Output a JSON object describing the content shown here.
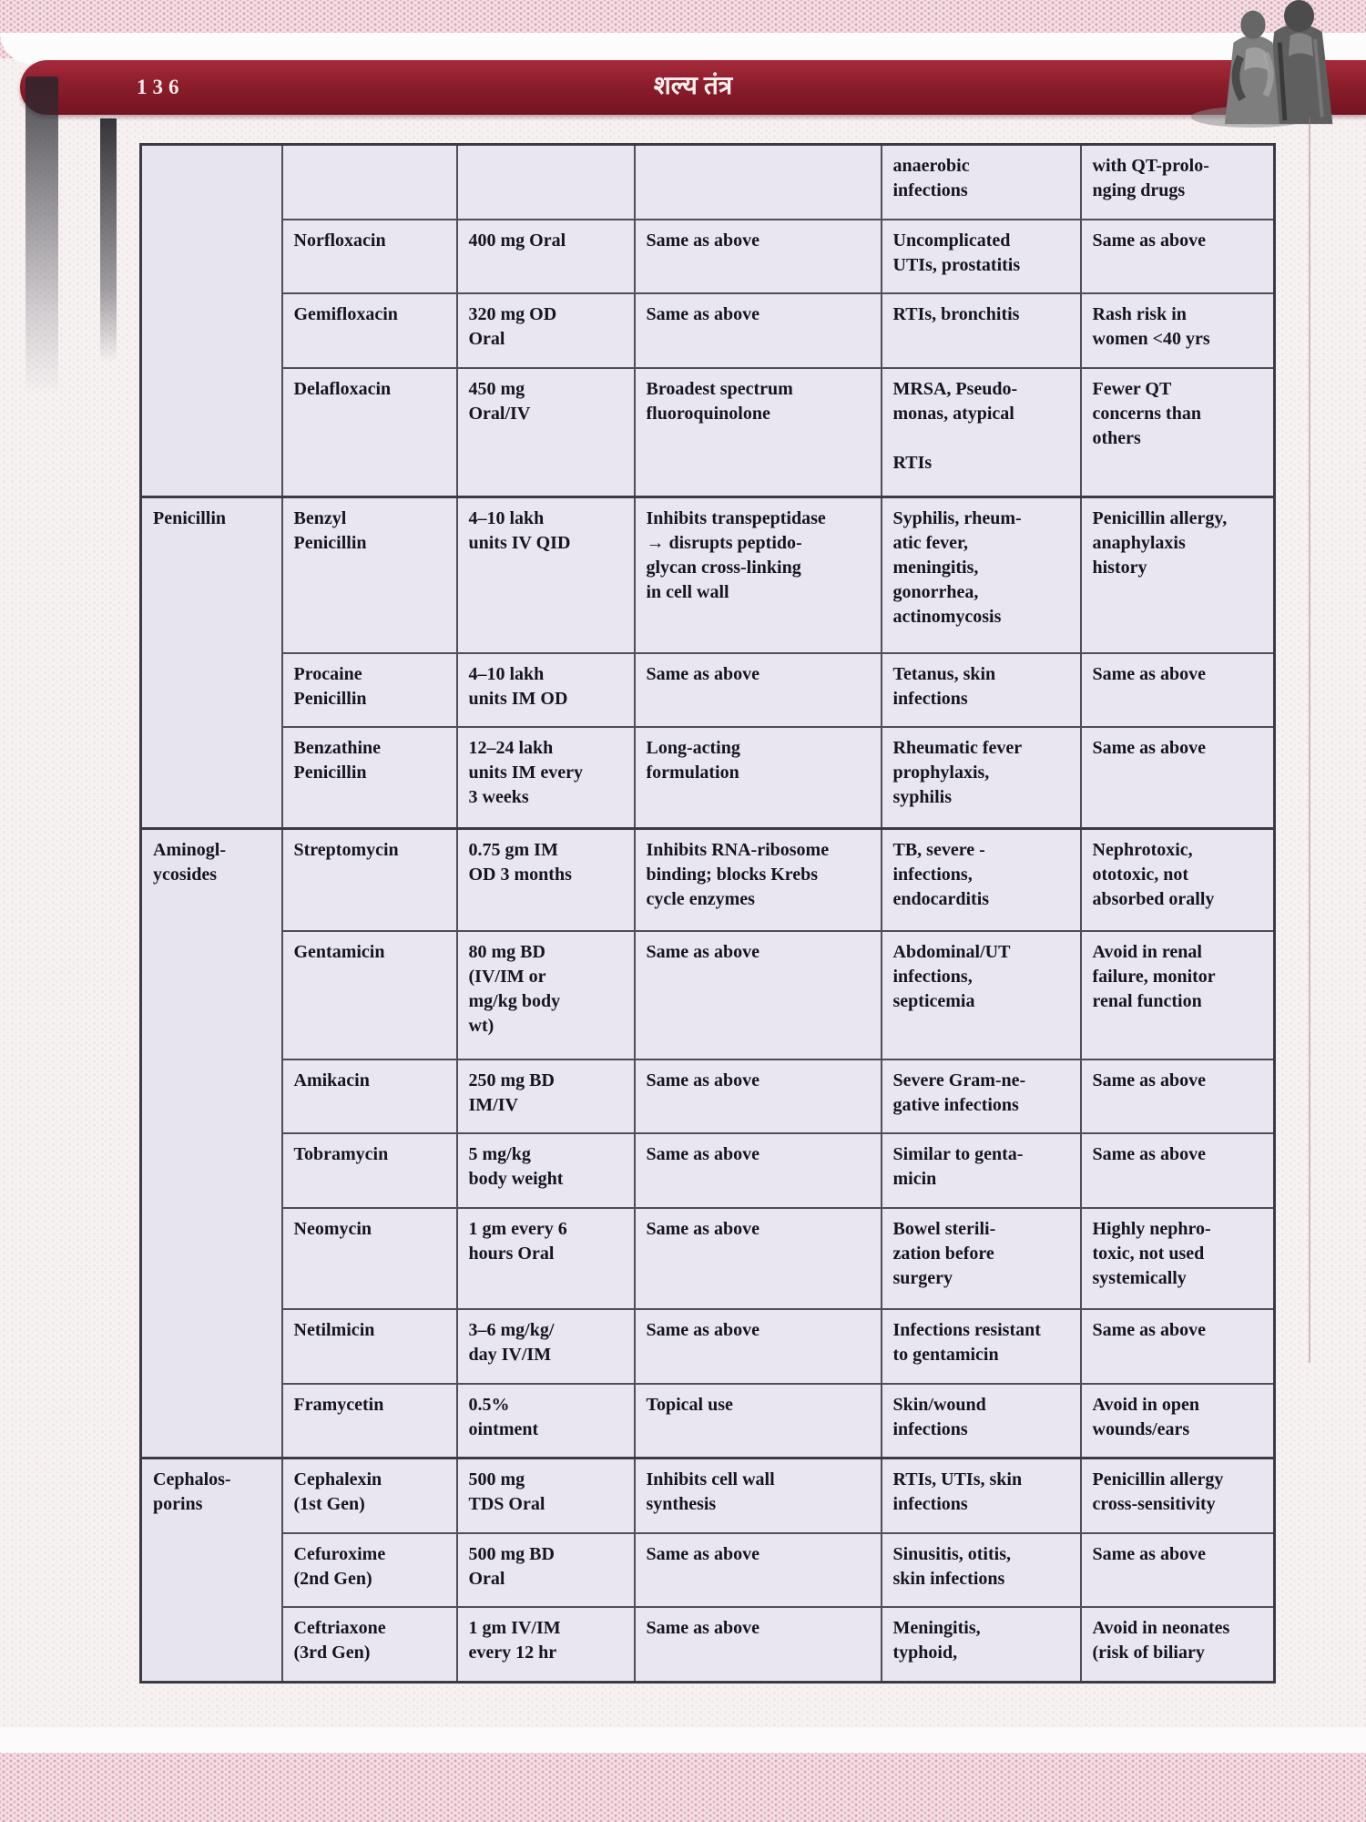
{
  "page": {
    "number": "136",
    "title": "शल्य तंत्र"
  },
  "colors": {
    "band": "#8c1d2b",
    "table_bg": "#e9e6f0",
    "border": "#4e4d58",
    "page_pink": "#f3e2e7"
  },
  "decor": {
    "statue_icon": "physicians-statue"
  },
  "table": {
    "sections": [
      {
        "class_label": "",
        "rows": [
          {
            "drug": "",
            "dose": "",
            "mechanism": "",
            "indications": "anaerobic\ninfections",
            "notes": "with QT-prolo-\nnging drugs"
          },
          {
            "drug": "Norfloxacin",
            "dose": "400 mg Oral",
            "mechanism": "Same as above",
            "indications": "Uncomplicated\nUTIs, prostatitis",
            "notes": "Same as above"
          },
          {
            "drug": "Gemifloxacin",
            "dose": "320 mg OD\nOral",
            "mechanism": "Same as above",
            "indications": "RTIs, bronchitis",
            "notes": "Rash risk in\nwomen <40 yrs"
          },
          {
            "drug": "Delafloxacin",
            "dose": "450 mg\nOral/IV",
            "mechanism": "Broadest spectrum\nfluoroquinolone",
            "indications": "MRSA, Pseudo-\nmonas, atypical\n\nRTIs",
            "notes": "Fewer QT\nconcerns than\nothers"
          }
        ]
      },
      {
        "class_label": "Penicillin",
        "rows": [
          {
            "drug": "Benzyl\nPenicillin",
            "dose": "4–10 lakh\nunits IV QID",
            "mechanism": "Inhibits transpeptidase\n→ disrupts peptido-\nglycan cross-linking\nin cell wall",
            "indications": "Syphilis, rheum-\natic fever,\nmeningitis,\ngonorrhea,\nactinomycosis",
            "notes": "Penicillin allergy,\nanaphylaxis\nhistory"
          },
          {
            "drug": "Procaine\nPenicillin",
            "dose": "4–10 lakh\nunits IM OD",
            "mechanism": "Same as above",
            "indications": "Tetanus, skin\ninfections",
            "notes": "Same as above"
          },
          {
            "drug": "Benzathine\nPenicillin",
            "dose": "12–24 lakh\nunits IM every\n3 weeks",
            "mechanism": "Long-acting\nformulation",
            "indications": "Rheumatic fever\nprophylaxis,\nsyphilis",
            "notes": "Same as above"
          }
        ]
      },
      {
        "class_label": "Aminogl-\nycosides",
        "rows": [
          {
            "drug": "Streptomycin",
            "dose": "0.75 gm IM\nOD 3 months",
            "mechanism": "Inhibits RNA-ribosome\nbinding; blocks Krebs\ncycle enzymes",
            "indications": "TB, severe -\ninfections,\nendocarditis",
            "notes": "Nephrotoxic,\nototoxic, not\nabsorbed orally"
          },
          {
            "drug": "Gentamicin",
            "dose": "80 mg BD\n(IV/IM or\nmg/kg body\nwt)",
            "mechanism": "Same as above",
            "indications": "Abdominal/UT\ninfections,\nsepticemia",
            "notes": "Avoid in renal\nfailure, monitor\nrenal function"
          },
          {
            "drug": "Amikacin",
            "dose": "250 mg BD\nIM/IV",
            "mechanism": "Same as above",
            "indications": "Severe Gram-ne-\ngative infections",
            "notes": "Same as above"
          },
          {
            "drug": "Tobramycin",
            "dose": "5 mg/kg\nbody weight",
            "mechanism": "Same as above",
            "indications": "Similar to genta-\nmicin",
            "notes": "Same as above"
          },
          {
            "drug": "Neomycin",
            "dose": "1 gm every 6\nhours Oral",
            "mechanism": "Same as above",
            "indications": "Bowel sterili-\nzation before\nsurgery",
            "notes": "Highly nephro-\ntoxic, not used\nsystemically"
          },
          {
            "drug": "Netilmicin",
            "dose": "3–6 mg/kg/\nday IV/IM",
            "mechanism": "Same as above",
            "indications": "Infections resistant\nto gentamicin",
            "notes": "Same as above"
          },
          {
            "drug": "Framycetin",
            "dose": "0.5%\nointment",
            "mechanism": "Topical use",
            "indications": "Skin/wound\ninfections",
            "notes": "Avoid in open\nwounds/ears"
          }
        ]
      },
      {
        "class_label": "Cephalos-\nporins",
        "rows": [
          {
            "drug": "Cephalexin\n(1st Gen)",
            "dose": "500 mg\nTDS Oral",
            "mechanism": "Inhibits cell wall\nsynthesis",
            "indications": "RTIs, UTIs, skin\ninfections",
            "notes": "Penicillin allergy\ncross-sensitivity"
          },
          {
            "drug": "Cefuroxime\n(2nd Gen)",
            "dose": "500 mg BD\nOral",
            "mechanism": "Same as above",
            "indications": "Sinusitis, otitis,\nskin infections",
            "notes": "Same as above"
          },
          {
            "drug": "Ceftriaxone\n(3rd Gen)",
            "dose": "1 gm IV/IM\nevery 12 hr",
            "mechanism": "Same as above",
            "indications": "Meningitis,\ntyphoid,",
            "notes": "Avoid in neonates\n(risk of biliary"
          }
        ]
      }
    ]
  }
}
